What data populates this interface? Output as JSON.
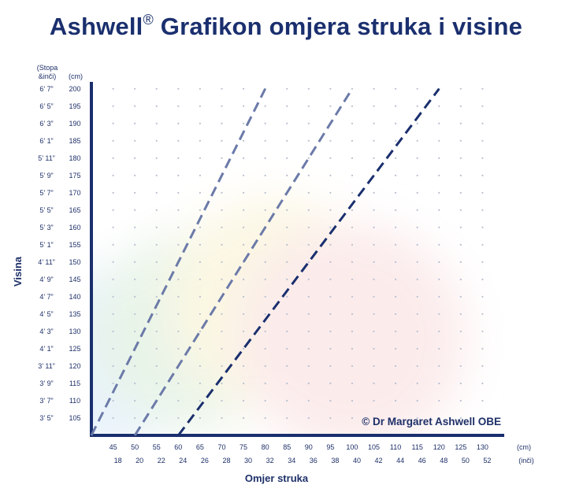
{
  "title": {
    "main": "Ashwell",
    "mark": "®",
    "rest": " Grafikon omjera struka i visine"
  },
  "copyright": "© Dr Margaret Ashwell OBE",
  "chart_data": {
    "type": "line",
    "title": "Ashwell® Grafikon omjera struka i visine",
    "xlabel": "Omjer struka",
    "ylabel": "Visina",
    "x_unit_cm": "(cm)",
    "x_unit_in": "(inči)",
    "y_unit_ftin": "(Stopa &inči)",
    "y_unit_cm": "(cm)",
    "xlim": [
      40,
      135
    ],
    "ylim": [
      100,
      202
    ],
    "x_ticks_cm": [
      45,
      50,
      55,
      60,
      65,
      70,
      75,
      80,
      85,
      90,
      95,
      100,
      105,
      110,
      115,
      120,
      125,
      130
    ],
    "x_ticks_in": [
      "18",
      "20",
      "22",
      "24",
      "26",
      "28",
      "30",
      "32",
      "34",
      "36",
      "38",
      "40",
      "42",
      "44",
      "46",
      "48",
      "50",
      "52"
    ],
    "y_ticks_cm": [
      105,
      110,
      115,
      120,
      125,
      130,
      135,
      140,
      145,
      150,
      155,
      160,
      165,
      170,
      175,
      180,
      185,
      190,
      195,
      200
    ],
    "y_ticks_ftin": [
      "3’ 5”",
      "3’ 7”",
      "3’ 9”",
      "3’ 11”",
      "4’ 1”",
      "4’ 3”",
      "4’ 5”",
      "4’ 7”",
      "4’ 9”",
      "4’ 11”",
      "5’ 1”",
      "5’ 3”",
      "5’ 5”",
      "5’ 7”",
      "5’ 9”",
      "5’ 11”",
      "6’ 1”",
      "6’ 3”",
      "6’ 5”",
      "6’ 7”"
    ],
    "grid": "dotted",
    "series": [
      {
        "points": [
          [
            40,
            100
          ],
          [
            80,
            200
          ]
        ],
        "color": "#6b7aa8"
      },
      {
        "points": [
          [
            50,
            100
          ],
          [
            100,
            200
          ]
        ],
        "color": "#6b7aa8"
      },
      {
        "points": [
          [
            60,
            100
          ],
          [
            120,
            200
          ]
        ],
        "color": "#1a2f6e"
      }
    ],
    "bands": [
      {
        "color": "#e4f0fb"
      },
      {
        "color": "#e5f3e5"
      },
      {
        "color": "#fbf6df"
      },
      {
        "color": "#fbe8e8"
      }
    ]
  }
}
